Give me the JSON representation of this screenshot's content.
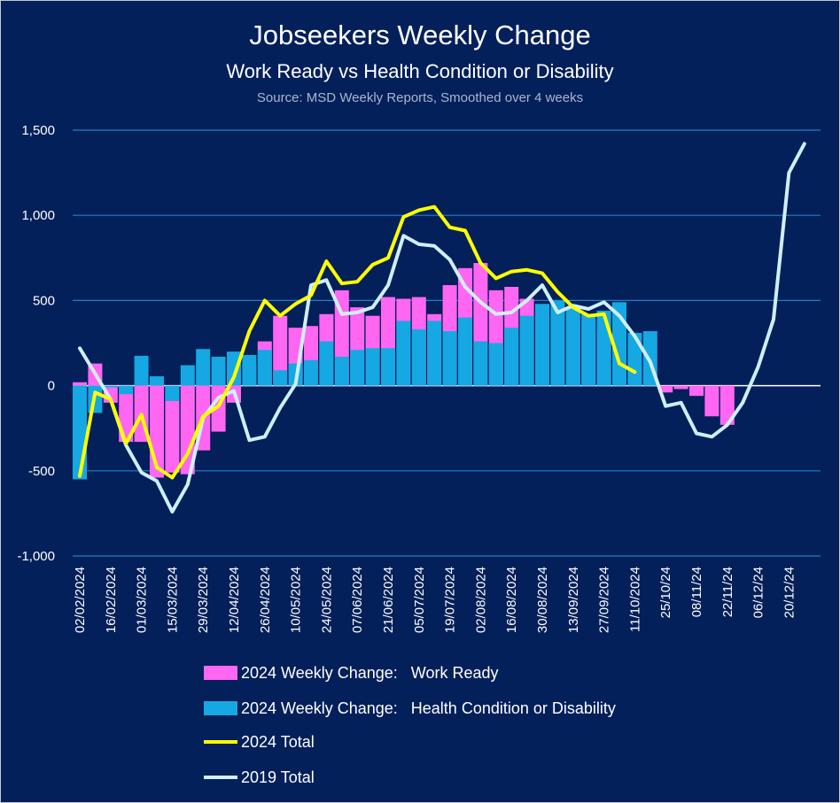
{
  "colors": {
    "background": "#04205a",
    "grid": "#1f7fc4",
    "work_ready": "#ff66f2",
    "health": "#15a8e2",
    "total_2024": "#ffff00",
    "total_2019": "#cfefff"
  },
  "chart_data": {
    "type": "bar",
    "title": "Jobseekers Weekly Change",
    "subtitle": "Work Ready vs Health Condition or Disability",
    "source": "Source: MSD Weekly Reports, Smoothed over 4 weeks",
    "ylim": [
      -1000,
      1500
    ],
    "y_ticks": [
      1500,
      1000,
      500,
      0,
      -500,
      -1000
    ],
    "y_tick_labels": [
      "1,500",
      "1,000",
      "500",
      "0",
      "-500",
      "-1,000"
    ],
    "x_tick_labels": [
      "02/02/2024",
      "16/02/2024",
      "01/03/2024",
      "15/03/2024",
      "29/03/2024",
      "12/04/2024",
      "26/04/2024",
      "10/05/2024",
      "24/05/2024",
      "07/06/2024",
      "21/06/2024",
      "05/07/2024",
      "19/07/2024",
      "02/08/2024",
      "16/08/2024",
      "30/08/2024",
      "13/09/2024",
      "27/09/2024",
      "11/10/2024",
      "25/10/24",
      "08/11/24",
      "22/11/24",
      "06/12/24",
      "20/12/24"
    ],
    "n_periods": 48,
    "series": [
      {
        "name": "2024 Weekly Change:   Work Ready",
        "kind": "bar",
        "values": [
          20,
          130,
          -100,
          -330,
          -330,
          -540,
          -510,
          -520,
          -380,
          -270,
          -100,
          130,
          260,
          410,
          340,
          350,
          420,
          560,
          460,
          410,
          520,
          510,
          520,
          420,
          590,
          690,
          720,
          560,
          580,
          510,
          430,
          460,
          390,
          380,
          320,
          250,
          150,
          60,
          -40,
          -20,
          -60,
          -180,
          -230
        ]
      },
      {
        "name": "2024 Weekly Change:   Health Condition or Disability",
        "kind": "bar",
        "values": [
          -550,
          -160,
          -10,
          -50,
          175,
          55,
          -90,
          120,
          215,
          170,
          200,
          180,
          210,
          90,
          130,
          150,
          260,
          170,
          210,
          220,
          220,
          380,
          330,
          380,
          320,
          400,
          260,
          250,
          340,
          410,
          480,
          500,
          460,
          420,
          440,
          490,
          310,
          320
        ]
      },
      {
        "name": "2024 Total",
        "kind": "line",
        "values": [
          -530,
          -40,
          -80,
          -340,
          -170,
          -480,
          -540,
          -400,
          -180,
          -120,
          50,
          320,
          500,
          410,
          480,
          530,
          730,
          600,
          610,
          710,
          750,
          990,
          1030,
          1050,
          930,
          910,
          720,
          630,
          670,
          680,
          660,
          550,
          460,
          410,
          420,
          130,
          80
        ]
      },
      {
        "name": "2019 Total",
        "kind": "line",
        "values": [
          220,
          70,
          -80,
          -350,
          -510,
          -560,
          -740,
          -580,
          -190,
          -70,
          -30,
          -320,
          -300,
          -130,
          10,
          590,
          620,
          420,
          430,
          460,
          590,
          880,
          830,
          820,
          740,
          580,
          490,
          420,
          430,
          500,
          590,
          430,
          470,
          450,
          490,
          410,
          290,
          140,
          -120,
          -100,
          -280,
          -300,
          -230,
          -100,
          110,
          390,
          1250,
          1420
        ]
      }
    ]
  }
}
